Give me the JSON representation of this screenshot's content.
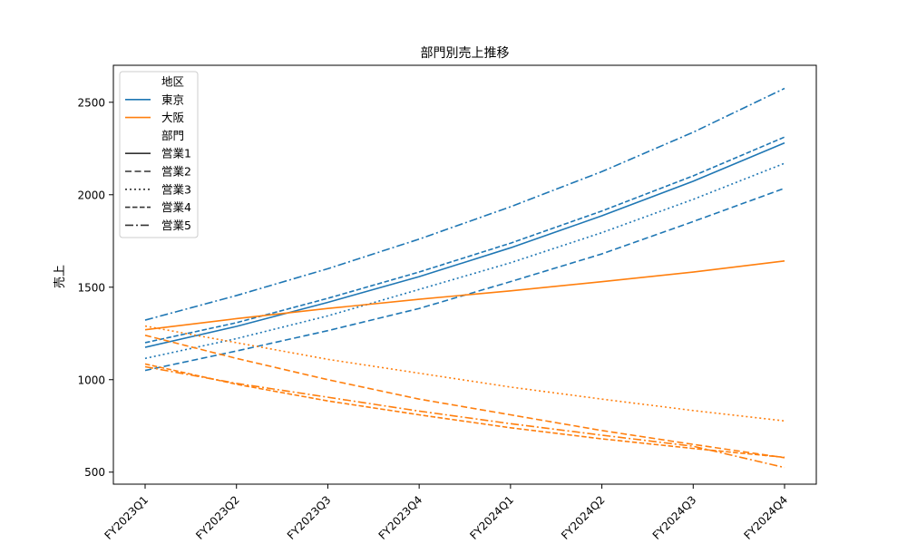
{
  "chart_data": {
    "type": "line",
    "title": "部門別売上推移",
    "xlabel": "",
    "ylabel": "売上",
    "categories": [
      "FY2023Q1",
      "FY2023Q2",
      "FY2023Q3",
      "FY2023Q4",
      "FY2024Q1",
      "FY2024Q2",
      "FY2024Q3",
      "FY2024Q4"
    ],
    "yticks": [
      500,
      1000,
      1500,
      2000,
      2500
    ],
    "ylim": [
      435,
      2700
    ],
    "grid": false,
    "legend": {
      "placement": "upper-left",
      "hue_title": "地区",
      "hue_entries": [
        {
          "label": "東京",
          "color": "#1f77b4"
        },
        {
          "label": "大阪",
          "color": "#ff7f0e"
        }
      ],
      "style_title": "部門",
      "style_entries": [
        {
          "label": "営業1",
          "dash": "solid"
        },
        {
          "label": "営業2",
          "dash": "dashed"
        },
        {
          "label": "営業3",
          "dash": "dotted"
        },
        {
          "label": "営業4",
          "dash": "dense-dashed"
        },
        {
          "label": "営業5",
          "dash": "dashdot"
        }
      ]
    },
    "series": [
      {
        "region": "東京",
        "dept": "営業1",
        "color": "#1f77b4",
        "dash": "solid",
        "values": [
          1175,
          1288,
          1418,
          1557,
          1713,
          1886,
          2073,
          2280
        ]
      },
      {
        "region": "東京",
        "dept": "営業2",
        "color": "#1f77b4",
        "dash": "dashed",
        "values": [
          1050,
          1155,
          1265,
          1385,
          1530,
          1680,
          1855,
          2035
        ]
      },
      {
        "region": "東京",
        "dept": "営業3",
        "color": "#1f77b4",
        "dash": "dotted",
        "values": [
          1115,
          1222,
          1345,
          1488,
          1632,
          1795,
          1975,
          2170
        ]
      },
      {
        "region": "東京",
        "dept": "営業4",
        "color": "#1f77b4",
        "dash": "dense-dashed",
        "values": [
          1200,
          1308,
          1440,
          1582,
          1738,
          1912,
          2102,
          2312
        ]
      },
      {
        "region": "東京",
        "dept": "営業5",
        "color": "#1f77b4",
        "dash": "dashdot",
        "values": [
          1322,
          1455,
          1600,
          1760,
          1935,
          2125,
          2338,
          2575
        ]
      },
      {
        "region": "大阪",
        "dept": "営業1",
        "color": "#ff7f0e",
        "dash": "solid",
        "values": [
          1270,
          1330,
          1385,
          1435,
          1480,
          1530,
          1582,
          1642
        ]
      },
      {
        "region": "大阪",
        "dept": "営業2",
        "color": "#ff7f0e",
        "dash": "dashed",
        "values": [
          1240,
          1115,
          1000,
          895,
          810,
          725,
          650,
          578
        ]
      },
      {
        "region": "大阪",
        "dept": "営業3",
        "color": "#ff7f0e",
        "dash": "dotted",
        "values": [
          1290,
          1200,
          1110,
          1035,
          960,
          895,
          833,
          777
        ]
      },
      {
        "region": "大阪",
        "dept": "営業4",
        "color": "#ff7f0e",
        "dash": "dense-dashed",
        "values": [
          1085,
          975,
          885,
          810,
          740,
          680,
          628,
          580
        ]
      },
      {
        "region": "大阪",
        "dept": "営業5",
        "color": "#ff7f0e",
        "dash": "dashdot",
        "values": [
          1070,
          980,
          905,
          830,
          762,
          700,
          640,
          525
        ]
      }
    ]
  }
}
